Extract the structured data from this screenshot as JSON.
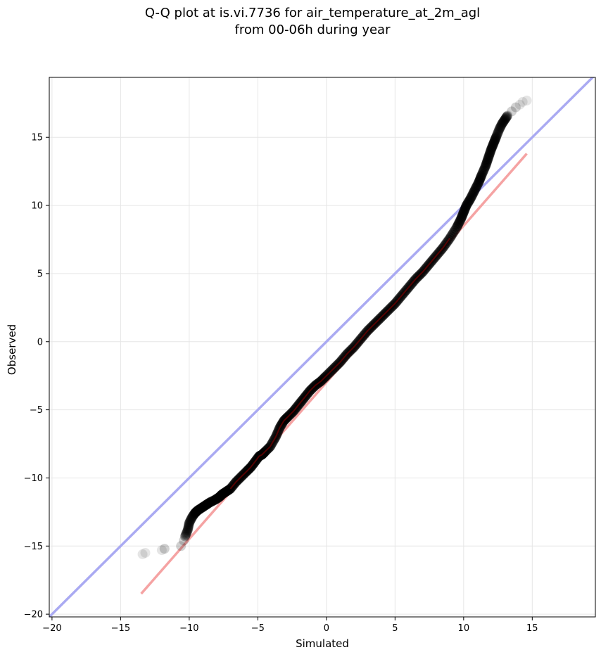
{
  "chart_data": {
    "type": "scatter",
    "title_line1": "Q-Q plot at is.vi.7736 for air_temperature_at_2m_agl",
    "title_line2": "from 00-06h during year",
    "xlabel": "Simulated",
    "ylabel": "Observed",
    "xlim": [
      -20.2,
      19.6
    ],
    "ylim": [
      -20.2,
      19.4
    ],
    "xticks": [
      "-20",
      "-15",
      "-10",
      "-5",
      "0",
      "5",
      "10",
      "15"
    ],
    "yticks": [
      "-20",
      "-15",
      "-10",
      "-5",
      "0",
      "5",
      "10",
      "15"
    ],
    "grid": true,
    "colors": {
      "points": "#000000",
      "identity_line": "#aaaaf2",
      "fit_line": "#f5a3a3",
      "fit_overlay": "#8b0000",
      "grid": "#e6e6e6"
    },
    "identity_line": {
      "x": [
        -20.2,
        19.6
      ],
      "y": [
        -20.2,
        19.6
      ]
    },
    "fit_line": {
      "x": [
        -13.5,
        14.6
      ],
      "y": [
        -18.5,
        13.8
      ]
    },
    "quantiles": {
      "x": [
        -13.4,
        -13.2,
        -12.0,
        -11.8,
        -10.6,
        -10.4,
        -10.3,
        -10.1,
        -10.0,
        -9.8,
        -9.6,
        -9.4,
        -9.1,
        -8.8,
        -8.5,
        -8.1,
        -7.8,
        -7.6,
        -7.3,
        -7.0,
        -6.6,
        -6.2,
        -5.8,
        -5.5,
        -5.2,
        -4.9,
        -4.7,
        -4.5,
        -4.1,
        -3.7,
        -3.4,
        -3.1,
        -2.8,
        -2.4,
        -2.0,
        -1.6,
        -1.2,
        -0.8,
        -0.4,
        0.0,
        0.5,
        1.0,
        1.5,
        2.0,
        2.5,
        3.0,
        3.5,
        4.0,
        4.5,
        5.0,
        5.5,
        6.0,
        6.5,
        7.0,
        7.5,
        8.0,
        8.5,
        9.0,
        9.5,
        9.8,
        10.0,
        10.2,
        10.5,
        10.8,
        11.1,
        11.3,
        11.6,
        11.8,
        12.0,
        12.2,
        12.4,
        12.6,
        12.8,
        13.0,
        13.2,
        13.5,
        13.8,
        14.1,
        14.3,
        14.6
      ],
      "y": [
        -15.6,
        -15.5,
        -15.3,
        -15.2,
        -15.0,
        -14.6,
        -14.3,
        -13.8,
        -13.3,
        -12.9,
        -12.6,
        -12.4,
        -12.2,
        -12.0,
        -11.8,
        -11.6,
        -11.4,
        -11.2,
        -11.0,
        -10.8,
        -10.3,
        -9.9,
        -9.5,
        -9.2,
        -8.8,
        -8.4,
        -8.3,
        -8.1,
        -7.7,
        -7.0,
        -6.3,
        -5.8,
        -5.5,
        -5.1,
        -4.6,
        -4.1,
        -3.6,
        -3.2,
        -2.9,
        -2.5,
        -2.0,
        -1.5,
        -0.9,
        -0.4,
        0.2,
        0.8,
        1.3,
        1.8,
        2.3,
        2.8,
        3.4,
        4.0,
        4.6,
        5.1,
        5.7,
        6.3,
        6.9,
        7.6,
        8.4,
        9.0,
        9.5,
        10.0,
        10.5,
        11.1,
        11.7,
        12.2,
        12.9,
        13.5,
        14.1,
        14.6,
        15.1,
        15.6,
        16.0,
        16.3,
        16.6,
        16.9,
        17.2,
        17.4,
        17.6,
        17.7
      ]
    }
  }
}
